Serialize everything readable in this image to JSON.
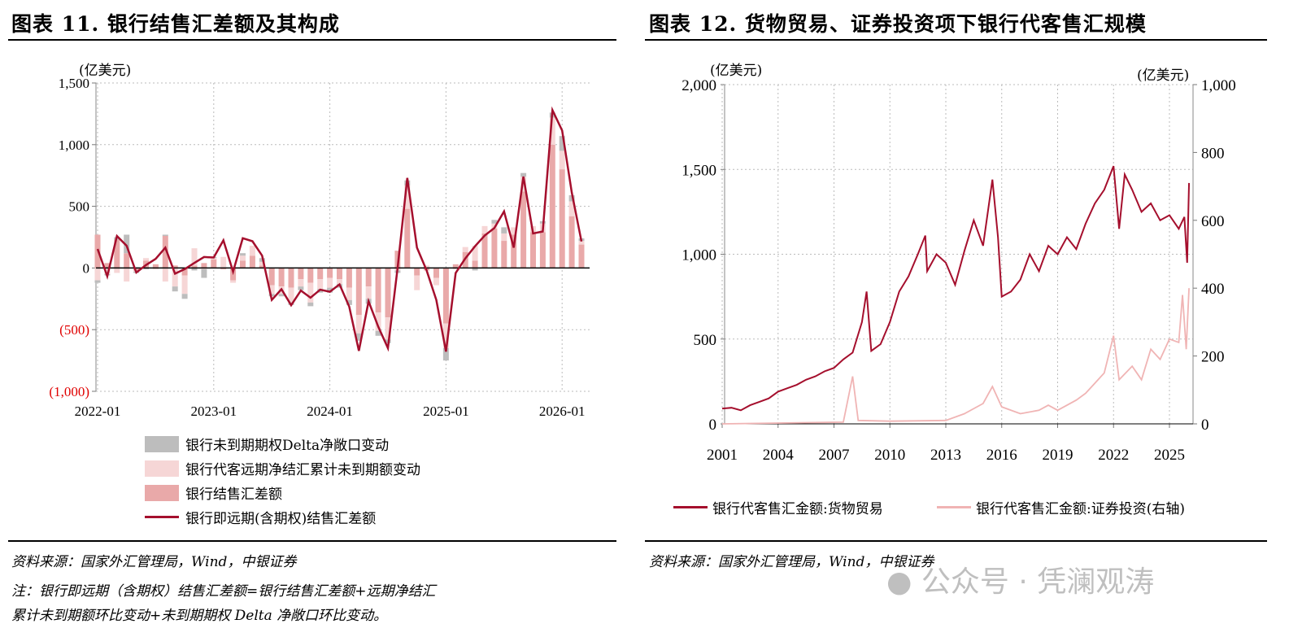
{
  "left": {
    "title": "图表 11. 银行结售汇差额及其构成",
    "unit": "(亿美元)",
    "source": "资料来源：国家外汇管理局，Wind，中银证券",
    "note1": "注：银行即远期（含期权）结售汇差额=银行结售汇差额+远期净结汇",
    "note2": "累计未到期额环比变动+未到期期权 Delta 净敞口环比变动。"
  },
  "right": {
    "title": "图表 12. 货物贸易、证券投资项下银行代客售汇规模",
    "unit_left": "(亿美元)",
    "unit_right": "(亿美元)",
    "source": "资料来源：国家外汇管理局，Wind，中银证券"
  },
  "watermark": "公众号 · 凭澜观涛",
  "chart_data": [
    {
      "type": "bar+line",
      "ylim": [
        -1000,
        1500
      ],
      "yticks": [
        1500,
        1000,
        500,
        0,
        -500,
        -1000
      ],
      "ytick_labels": [
        "1,500",
        "1,000",
        "500",
        "0",
        "(500)",
        "(1,000)"
      ],
      "negative_tick_color": "#e00000",
      "xtick_labels": [
        "2022-01",
        "2023-01",
        "2024-01",
        "2025-01",
        "2026-01"
      ],
      "x_start": "2022-01",
      "x_end": "2026-03",
      "grid": true,
      "legend": "bottom",
      "series": [
        {
          "name": "银行未到期期权Delta净敞口变动",
          "type": "stacked-bar",
          "color": "#bdbdbd",
          "values": [
            -20,
            -10,
            20,
            150,
            -10,
            -10,
            0,
            10,
            -40,
            -40,
            -20,
            -70,
            10,
            0,
            0,
            20,
            0,
            30,
            -20,
            -20,
            -20,
            -30,
            -30,
            -30,
            -40,
            -30,
            -40,
            -60,
            -40,
            -40,
            -30,
            -20,
            40,
            0,
            0,
            0,
            -100,
            0,
            0,
            -20,
            0,
            30,
            50,
            0,
            30,
            0,
            20,
            40,
            120,
            50,
            20
          ]
        },
        {
          "name": "银行代客远期净结汇累计未到期额变动",
          "type": "stacked-bar",
          "color": "#f6d6d6",
          "values": [
            -100,
            -50,
            -40,
            -110,
            -10,
            20,
            -10,
            -110,
            -150,
            -150,
            140,
            -10,
            10,
            90,
            -20,
            40,
            80,
            30,
            -70,
            -60,
            -120,
            -60,
            -160,
            -80,
            -80,
            -40,
            -100,
            -150,
            -100,
            -150,
            -180,
            -20,
            190,
            -120,
            20,
            -60,
            -200,
            -10,
            40,
            120,
            60,
            40,
            60,
            60,
            120,
            50,
            70,
            220,
            150,
            120,
            30
          ]
        },
        {
          "name": "银行结售汇差额",
          "type": "stacked-bar",
          "color": "#e9a9a9",
          "values": [
            270,
            40,
            230,
            120,
            -20,
            60,
            30,
            260,
            20,
            -60,
            20,
            40,
            70,
            -10,
            -100,
            60,
            100,
            20,
            -140,
            -150,
            -160,
            -90,
            -120,
            -90,
            -80,
            -90,
            -160,
            -380,
            -150,
            -360,
            -400,
            140,
            480,
            -60,
            -20,
            -80,
            -450,
            30,
            130,
            60,
            280,
            320,
            220,
            270,
            620,
            290,
            290,
            1000,
            800,
            420,
            190
          ]
        },
        {
          "name": "银行即远期(含期权)结售汇差额",
          "type": "line",
          "color": "#a50f2d",
          "values": [
            154,
            -67,
            259,
            180,
            -37,
            24,
            74,
            165,
            -46,
            -9,
            41,
            89,
            85,
            224,
            -30,
            241,
            217,
            100,
            -259,
            -172,
            -302,
            -183,
            -241,
            -176,
            -193,
            -133,
            -313,
            -672,
            -270,
            -476,
            -650,
            0,
            730,
            165,
            -20,
            -259,
            -678,
            -41,
            78,
            176,
            263,
            324,
            459,
            165,
            741,
            280,
            296,
            1280,
            1115,
            611,
            215
          ]
        }
      ]
    },
    {
      "type": "line",
      "ylim_left": [
        0,
        2000
      ],
      "ylim_right": [
        0,
        1000
      ],
      "yticks_left": [
        "2,000",
        "1,500",
        "1,000",
        "500",
        "0"
      ],
      "yticks_right": [
        "1,000",
        "800",
        "600",
        "400",
        "200",
        "0"
      ],
      "xtick_labels": [
        "2001",
        "2004",
        "2007",
        "2010",
        "2013",
        "2016",
        "2019",
        "2022",
        "2025"
      ],
      "grid": true,
      "legend": "bottom",
      "series": [
        {
          "name": "银行代客售汇金额:货物贸易",
          "axis": "left",
          "color": "#a50f2d",
          "x": [
            2001,
            2001.5,
            2002,
            2002.5,
            2003,
            2003.5,
            2004,
            2004.5,
            2005,
            2005.5,
            2006,
            2006.5,
            2007,
            2007.5,
            2008,
            2008.5,
            2008.75,
            2009,
            2009.5,
            2010,
            2010.5,
            2011,
            2011.5,
            2011.9,
            2012,
            2012.5,
            2013,
            2013.5,
            2014,
            2014.5,
            2015,
            2015.5,
            2015.8,
            2016,
            2016.5,
            2017,
            2017.5,
            2018,
            2018.5,
            2019,
            2019.5,
            2020,
            2020.5,
            2021,
            2021.5,
            2022,
            2022.3,
            2022.6,
            2023,
            2023.5,
            2024,
            2024.5,
            2025,
            2025.5,
            2025.8,
            2025.95,
            2026.05
          ],
          "y": [
            90,
            95,
            80,
            110,
            130,
            150,
            190,
            210,
            230,
            260,
            280,
            310,
            330,
            380,
            420,
            600,
            780,
            430,
            470,
            600,
            780,
            870,
            1000,
            1110,
            900,
            1000,
            950,
            820,
            1020,
            1200,
            1050,
            1440,
            1100,
            750,
            780,
            850,
            1000,
            900,
            1050,
            1000,
            1100,
            1030,
            1180,
            1300,
            1380,
            1520,
            1150,
            1470,
            1380,
            1250,
            1300,
            1200,
            1230,
            1150,
            1220,
            950,
            1420
          ]
        },
        {
          "name": "银行代客售汇金额:证券投资(右轴)",
          "axis": "right",
          "color": "#f0b4b4",
          "x": [
            2001,
            2007.5,
            2008,
            2008.3,
            2010,
            2013,
            2014,
            2015,
            2015.5,
            2016,
            2017,
            2018,
            2018.5,
            2019,
            2020,
            2020.5,
            2021,
            2021.5,
            2022,
            2022.3,
            2023,
            2023.5,
            2024,
            2024.5,
            2025,
            2025.5,
            2025.7,
            2025.9,
            2026.05
          ],
          "y": [
            0,
            5,
            140,
            10,
            8,
            10,
            30,
            60,
            110,
            50,
            30,
            40,
            55,
            40,
            70,
            90,
            120,
            150,
            260,
            130,
            170,
            130,
            220,
            190,
            250,
            240,
            380,
            220,
            400
          ]
        }
      ]
    }
  ]
}
